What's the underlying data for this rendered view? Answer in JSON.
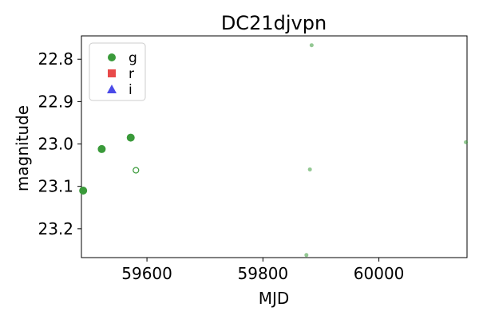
{
  "chart_data": {
    "type": "scatter",
    "title": "DC21djvpn",
    "xlabel": "MJD",
    "ylabel": "magnitude",
    "xlim": [
      59487,
      60152
    ],
    "ylim": [
      23.268,
      22.745
    ],
    "y_inverted": true,
    "xticks": [
      59600,
      59800,
      60000
    ],
    "xtick_labels": [
      "59600",
      "59800",
      "60000"
    ],
    "yticks": [
      22.8,
      22.9,
      23.0,
      23.1,
      23.2
    ],
    "ytick_labels": [
      "22.8",
      "22.9",
      "23.0",
      "23.1",
      "23.2"
    ],
    "grid": false,
    "legend": {
      "position": "top-left",
      "entries": [
        {
          "label": "g",
          "marker": "circle",
          "color": "#3a9a3a"
        },
        {
          "label": "r",
          "marker": "square",
          "color": "#e84a4a"
        },
        {
          "label": "i",
          "marker": "triangle",
          "color": "#4a4ae8"
        }
      ]
    },
    "series": [
      {
        "name": "g",
        "color": "#3a9a3a",
        "points": [
          {
            "x": 59490,
            "y": 23.11,
            "style": "filled",
            "size": "large"
          },
          {
            "x": 59522,
            "y": 23.012,
            "style": "filled",
            "size": "large"
          },
          {
            "x": 59572,
            "y": 22.985,
            "style": "filled",
            "size": "large"
          },
          {
            "x": 59581,
            "y": 23.062,
            "style": "hollow",
            "size": "large"
          },
          {
            "x": 59875,
            "y": 23.262,
            "style": "faint",
            "size": "small"
          },
          {
            "x": 59881,
            "y": 23.06,
            "style": "faint",
            "size": "small"
          },
          {
            "x": 59884,
            "y": 22.767,
            "style": "faint",
            "size": "small"
          },
          {
            "x": 60150,
            "y": 22.996,
            "style": "faint",
            "size": "small"
          }
        ]
      },
      {
        "name": "r",
        "color": "#e84a4a",
        "points": []
      },
      {
        "name": "i",
        "color": "#4a4ae8",
        "points": []
      }
    ]
  }
}
